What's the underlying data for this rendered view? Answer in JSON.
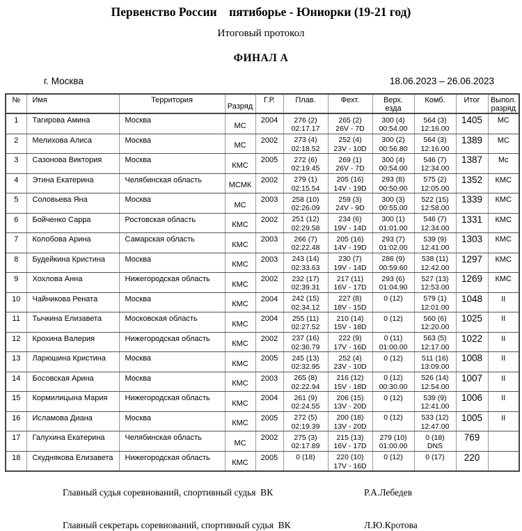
{
  "header": {
    "title": "Первенство России    пятиборье - Юниорки (19-21 год)",
    "subtitle": "Итоговый протокол",
    "final_label": "ФИНАЛ А",
    "city": "г. Москва",
    "dates": "18.06.2023 – 26.06.2023"
  },
  "table": {
    "columns": [
      {
        "l1": "№",
        "l2": ""
      },
      {
        "l1": "Имя",
        "l2": ""
      },
      {
        "l1": "Территория",
        "l2": ""
      },
      {
        "l1": "Разряд",
        "l2": ""
      },
      {
        "l1": "Г.Р.",
        "l2": ""
      },
      {
        "l1": "Плав.",
        "l2": ""
      },
      {
        "l1": "Фехт.",
        "l2": ""
      },
      {
        "l1": "Верх.",
        "l2": "езда"
      },
      {
        "l1": "Комб.",
        "l2": ""
      },
      {
        "l1": "Итог",
        "l2": ""
      },
      {
        "l1": "Выпол.",
        "l2": "разряд"
      }
    ],
    "rows": [
      {
        "num": "1",
        "name": "Тагирова Амина",
        "territory": "Москва",
        "razryad": "МС",
        "year": "2004",
        "plav": [
          "276 (2)",
          "02:17.17"
        ],
        "fekht": [
          "265 (2)",
          "26V - 7D"
        ],
        "verh": [
          "300 (4)",
          "00:54.00"
        ],
        "komb": [
          "564 (3)",
          "12:16.00"
        ],
        "total": "1405",
        "vypol": "МС"
      },
      {
        "num": "2",
        "name": "Мелихова Алиса",
        "territory": "Москва",
        "razryad": "МС",
        "year": "2002",
        "plav": [
          "273 (4)",
          "02:18.52"
        ],
        "fekht": [
          "252 (4)",
          "23V - 10D"
        ],
        "verh": [
          "300 (2)",
          "00:56.80"
        ],
        "komb": [
          "564 (3)",
          "12:16.00"
        ],
        "total": "1389",
        "vypol": "МС"
      },
      {
        "num": "3",
        "name": "Сазонова Виктория",
        "territory": "Москва",
        "razryad": "КМС",
        "year": "2005",
        "plav": [
          "272 (6)",
          "02:19.45"
        ],
        "fekht": [
          "269 (1)",
          "26V - 7D"
        ],
        "verh": [
          "300 (4)",
          "00:54.00"
        ],
        "komb": [
          "546 (7)",
          "12:34.00"
        ],
        "total": "1387",
        "vypol": "Мс"
      },
      {
        "num": "4",
        "name": "Этина Екатерина",
        "territory": "Челябинская область",
        "razryad": "МСМК",
        "year": "2002",
        "plav": [
          "279 (1)",
          "02:15.54"
        ],
        "fekht": [
          "205 (16)",
          "14V - 19D"
        ],
        "verh": [
          "293 (8)",
          "00:50.00"
        ],
        "komb": [
          "575 (2)",
          "12:05.00"
        ],
        "total": "1352",
        "vypol": "КМС"
      },
      {
        "num": "5",
        "name": "Соловьева Яна",
        "territory": "Москва",
        "razryad": "МС",
        "year": "2003",
        "plav": [
          "258 (10)",
          "02:26.09"
        ],
        "fekht": [
          "259 (3)",
          "24V - 9D"
        ],
        "verh": [
          "300 (3)",
          "00:55.00"
        ],
        "komb": [
          "522 (15)",
          "12:58.00"
        ],
        "total": "1339",
        "vypol": "КМС"
      },
      {
        "num": "6",
        "name": "Бойченко Сарра",
        "territory": "Ростовская область",
        "razryad": "КМС",
        "year": "2002",
        "plav": [
          "251 (12)",
          "02:29.58"
        ],
        "fekht": [
          "234 (6)",
          "19V - 14D"
        ],
        "verh": [
          "300 (1)",
          "01:01.00"
        ],
        "komb": [
          "546 (7)",
          "12:34.00"
        ],
        "total": "1331",
        "vypol": "КМС"
      },
      {
        "num": "7",
        "name": "Колобова Арина",
        "territory": "Самарская область",
        "razryad": "КМС",
        "year": "2003",
        "plav": [
          "266 (7)",
          "02:22.48"
        ],
        "fekht": [
          "205 (16)",
          "14V - 19D"
        ],
        "verh": [
          "293 (7)",
          "01:02.00"
        ],
        "komb": [
          "539 (9)",
          "12:41.00"
        ],
        "total": "1303",
        "vypol": "КМС"
      },
      {
        "num": "8",
        "name": "Будейкина Кристина",
        "territory": "Москва",
        "razryad": "КМС",
        "year": "2003",
        "plav": [
          "243 (14)",
          "02:33.63"
        ],
        "fekht": [
          "230 (7)",
          "19V - 14D"
        ],
        "verh": [
          "286 (9)",
          "00:59.60"
        ],
        "komb": [
          "538 (11)",
          "12:42.00"
        ],
        "total": "1297",
        "vypol": "КМС"
      },
      {
        "num": "9",
        "name": "Хохлова Анна",
        "territory": "Нижегородская область",
        "razryad": "КМС",
        "year": "2002",
        "plav": [
          "232 (17)",
          "02:39.31"
        ],
        "fekht": [
          "217 (11)",
          "16V - 17D"
        ],
        "verh": [
          "293 (6)",
          "01:04.90"
        ],
        "komb": [
          "527 (13)",
          "12:53.00"
        ],
        "total": "1269",
        "vypol": "КМС"
      },
      {
        "num": "10",
        "name": "Чайникова Рената",
        "territory": "Москва",
        "razryad": "КМС",
        "year": "2004",
        "plav": [
          "242 (15)",
          "02:34.12"
        ],
        "fekht": [
          "227 (8)",
          "18V - 15D"
        ],
        "verh": [
          "0 (12)",
          ""
        ],
        "komb": [
          "579 (1)",
          "12:01.00"
        ],
        "total": "1048",
        "vypol": "II"
      },
      {
        "num": "11",
        "name": "Тычкина Елизавета",
        "territory": "Московская область",
        "razryad": "КМС",
        "year": "2004",
        "plav": [
          "255 (11)",
          "02:27.52"
        ],
        "fekht": [
          "210 (14)",
          "15V - 18D"
        ],
        "verh": [
          "0 (12)",
          ""
        ],
        "komb": [
          "560 (6)",
          "12:20.00"
        ],
        "total": "1025",
        "vypol": "II"
      },
      {
        "num": "12",
        "name": "Крохина Валерия",
        "territory": "Нижегородская область",
        "razryad": "КМС",
        "year": "2002",
        "plav": [
          "237 (16)",
          "02:36.79"
        ],
        "fekht": [
          "222 (9)",
          "17V - 16D"
        ],
        "verh": [
          "0 (11)",
          "01:00.00"
        ],
        "komb": [
          "563 (5)",
          "12:17.00"
        ],
        "total": "1022",
        "vypol": "II"
      },
      {
        "num": "13",
        "name": "Ларюшина Кристина",
        "territory": "Москва",
        "razryad": "КМС",
        "year": "2005",
        "plav": [
          "245 (13)",
          "02:32.95"
        ],
        "fekht": [
          "252 (4)",
          "23V - 10D"
        ],
        "verh": [
          "0 (12)",
          ""
        ],
        "komb": [
          "511 (16)",
          "13:09.00"
        ],
        "total": "1008",
        "vypol": "II"
      },
      {
        "num": "14",
        "name": "Босовская Арина",
        "territory": "Москва",
        "razryad": "КМС",
        "year": "2003",
        "plav": [
          "265 (8)",
          "02:22.94"
        ],
        "fekht": [
          "216 (12)",
          "15V - 18D"
        ],
        "verh": [
          "0 (12)",
          "00:30.00"
        ],
        "komb": [
          "526 (14)",
          "12:54.00"
        ],
        "total": "1007",
        "vypol": "II"
      },
      {
        "num": "15",
        "name": "Кормилицына Мария",
        "territory": "Нижегородская область",
        "razryad": "КМС",
        "year": "2004",
        "plav": [
          "261 (9)",
          "02:24.55"
        ],
        "fekht": [
          "206 (15)",
          "13V - 20D"
        ],
        "verh": [
          "0 (12)",
          ""
        ],
        "komb": [
          "539 (9)",
          "12:41.00"
        ],
        "total": "1006",
        "vypol": "II"
      },
      {
        "num": "16",
        "name": "Исламова Диана",
        "territory": "Москва",
        "razryad": "КМС",
        "year": "2005",
        "plav": [
          "272 (5)",
          "02:19.39"
        ],
        "fekht": [
          "200 (18)",
          "13V - 20D"
        ],
        "verh": [
          "0 (12)",
          ""
        ],
        "komb": [
          "533 (12)",
          "12:47.00"
        ],
        "total": "1005",
        "vypol": "II"
      },
      {
        "num": "17",
        "name": "Галухина Екатерина",
        "territory": "Челябинская область",
        "razryad": "МС",
        "year": "2002",
        "plav": [
          "275 (3)",
          "02:17.89"
        ],
        "fekht": [
          "215 (13)",
          "16V - 17D"
        ],
        "verh": [
          "279 (10)",
          "01:00.00"
        ],
        "komb": [
          "0 (18)",
          "DNS"
        ],
        "total": "769",
        "vypol": ""
      },
      {
        "num": "18",
        "name": "Скуднякова Елизавета",
        "territory": "Нижегородская область",
        "razryad": "КМС",
        "year": "2005",
        "plav": [
          "0 (18)",
          ""
        ],
        "fekht": [
          "220 (10)",
          "17V - 16D"
        ],
        "verh": [
          "0 (12)",
          ""
        ],
        "komb": [
          "0 (17)",
          ""
        ],
        "total": "220",
        "vypol": ""
      }
    ]
  },
  "footer": {
    "judge_label": "Главный судья соревнований, спортивный судья  ВК",
    "judge_name": "Р.А.Лебедев",
    "secretary_label": "Главный секретарь соревнований, спортивный судья  ВК",
    "secretary_name": "Л.Ю.Кротова"
  }
}
